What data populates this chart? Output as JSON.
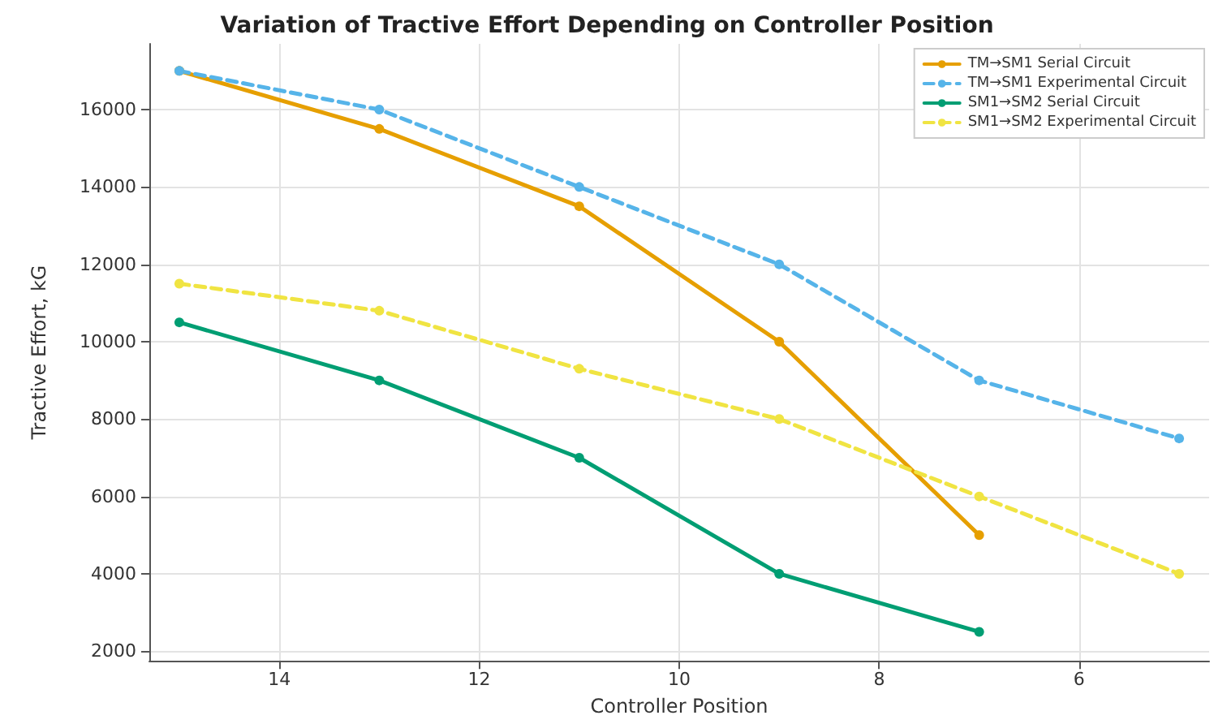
{
  "chart_data": {
    "type": "line",
    "title": "Variation of Tractive Effort Depending on Controller Position",
    "xlabel": "Controller Position",
    "ylabel": "Tractive Effort, kG",
    "x": [
      15,
      13,
      11,
      9,
      7,
      5
    ],
    "series": [
      {
        "name": "TM→SM1 Serial Circuit",
        "color": "#e69f00",
        "values": [
          17000,
          15500,
          13500,
          10000,
          5000,
          null
        ],
        "line_style": "solid"
      },
      {
        "name": "TM→SM1 Experimental Circuit",
        "color": "#56b4e9",
        "values": [
          17000,
          16000,
          14000,
          12000,
          9000,
          7500
        ],
        "line_style": "dashed"
      },
      {
        "name": "SM1→SM2 Serial Circuit",
        "color": "#009e73",
        "values": [
          10500,
          9000,
          7000,
          4000,
          2500,
          null
        ],
        "line_style": "solid"
      },
      {
        "name": "SM1→SM2 Experimental Circuit",
        "color": "#f0e442",
        "values": [
          11500,
          10800,
          9300,
          8000,
          6000,
          4000
        ],
        "line_style": "dashed"
      }
    ],
    "xlim": [
      15.3,
      4.7
    ],
    "xticks": [
      14,
      12,
      10,
      8,
      6
    ],
    "ylim": [
      1750,
      17700
    ],
    "yticks": [
      2000,
      4000,
      6000,
      8000,
      10000,
      12000,
      14000,
      16000
    ],
    "grid": true,
    "legend": "top right",
    "marker": "circle"
  }
}
